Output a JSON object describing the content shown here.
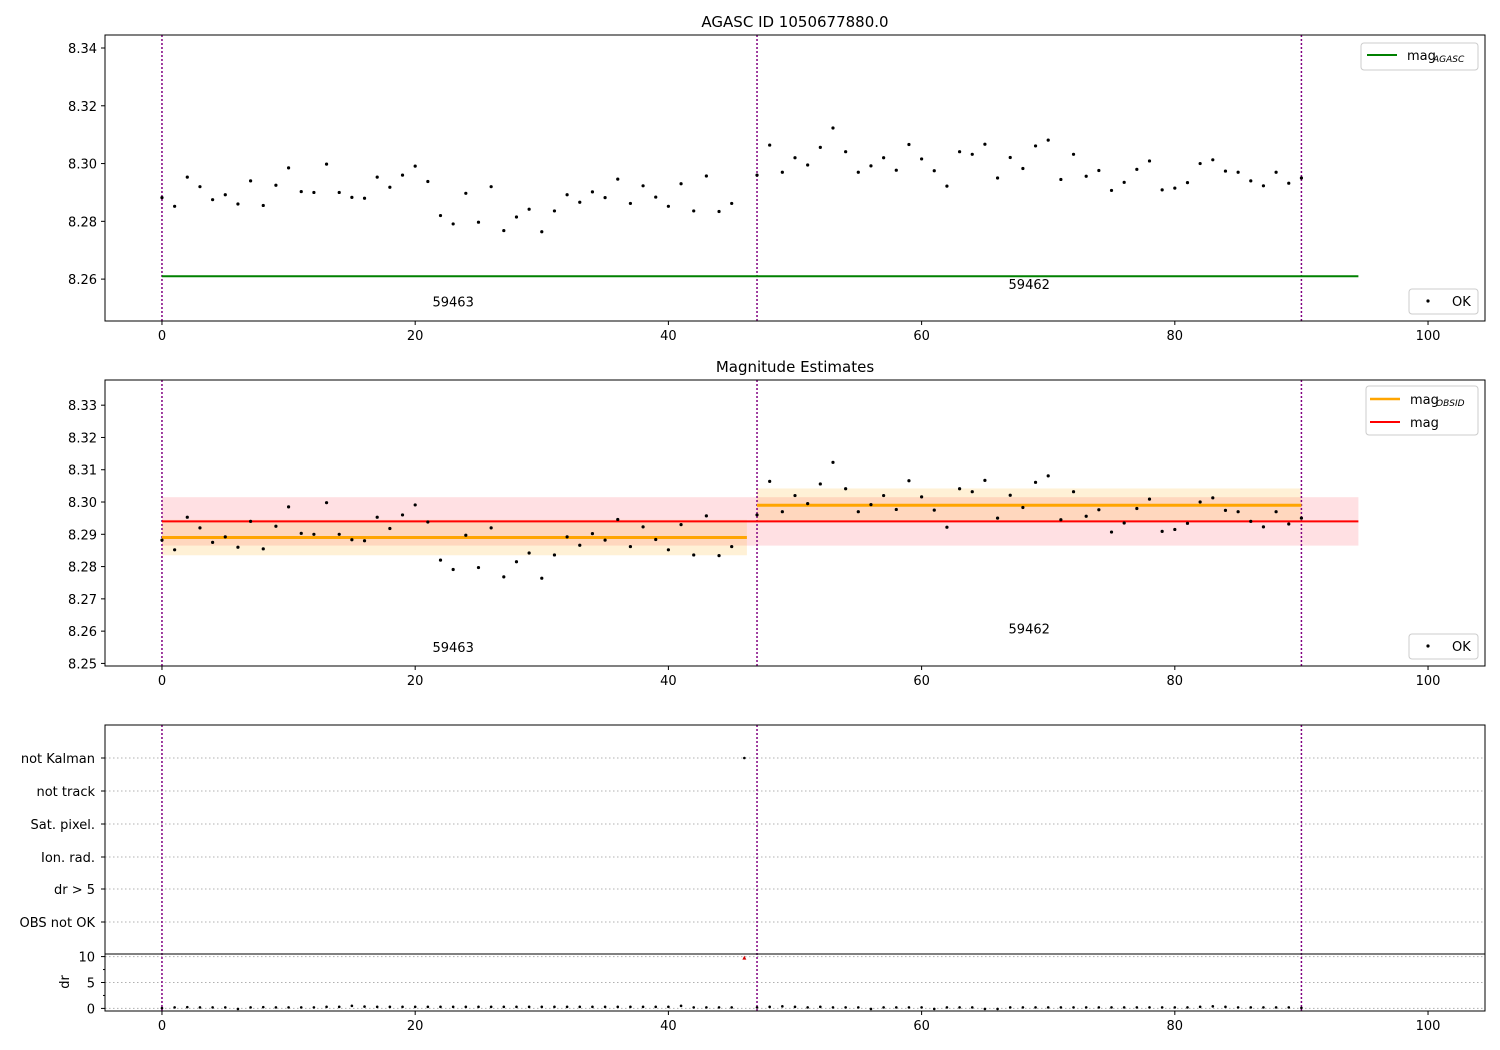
{
  "chart_data": [
    {
      "type": "scatter",
      "title": "AGASC ID 1050677880.0",
      "ylim": [
        8.2455,
        8.3445
      ],
      "yticks": [
        "8.26",
        "8.28",
        "8.30",
        "8.32",
        "8.34"
      ],
      "ytick_values": [
        8.26,
        8.28,
        8.3,
        8.32,
        8.34
      ],
      "reference_lines": [
        {
          "name": "AGASC",
          "value": 8.261,
          "color": "#008000",
          "x_range": [
            0,
            94.5
          ]
        }
      ],
      "legends": [
        {
          "position": "upper right",
          "entries": [
            {
              "label": "mag",
              "sub": "AGASC",
              "color": "#008000",
              "marker": "line"
            }
          ]
        },
        {
          "position": "lower right",
          "entries": [
            {
              "label": "OK",
              "color": "#000000",
              "marker": "dot"
            }
          ]
        }
      ],
      "annotations": [
        {
          "text": "59463",
          "x": 23,
          "y": 8.2505
        },
        {
          "text": "59462",
          "x": 68.5,
          "y": 8.2565
        }
      ]
    },
    {
      "type": "scatter",
      "title": "Magnitude Estimates",
      "ylim": [
        8.2492,
        8.3378
      ],
      "yticks": [
        "8.25",
        "8.26",
        "8.27",
        "8.28",
        "8.29",
        "8.30",
        "8.31",
        "8.32",
        "8.33"
      ],
      "ytick_values": [
        8.25,
        8.26,
        8.27,
        8.28,
        8.29,
        8.3,
        8.31,
        8.32,
        8.33
      ],
      "overall": {
        "value": 8.294,
        "band": [
          8.2865,
          8.3015
        ],
        "x_range": [
          0,
          94.5
        ],
        "color": "#ff0000",
        "band_color": "#ffe0e3"
      },
      "obsid_segments": [
        {
          "x_range": [
            0,
            46.2
          ],
          "value": 8.289,
          "band": [
            8.2835,
            8.2945
          ]
        },
        {
          "x_range": [
            47,
            90
          ],
          "value": 8.299,
          "band": [
            8.2942,
            8.3042
          ]
        }
      ],
      "legends": [
        {
          "position": "upper right",
          "entries": [
            {
              "label": "mag",
              "sub": "OBSID",
              "color": "#ffa500",
              "marker": "line"
            },
            {
              "label": "mag",
              "color": "#ff0000",
              "marker": "line"
            }
          ]
        },
        {
          "position": "lower right",
          "entries": [
            {
              "label": "OK",
              "color": "#000000",
              "marker": "dot"
            }
          ]
        }
      ],
      "annotations": [
        {
          "text": "59463",
          "x": 23,
          "y": 8.2535
        },
        {
          "text": "59462",
          "x": 68.5,
          "y": 8.2593
        }
      ]
    },
    {
      "type": "scatter",
      "title": "",
      "flag_labels": [
        "not Kalman",
        "not track",
        "Sat. pixel.",
        "Ion. rad.",
        "dr > 5",
        "OBS not OK"
      ],
      "flags": [
        {
          "label": "not Kalman",
          "x": [
            46
          ]
        }
      ],
      "dr_ylim": [
        -0.5,
        10.5
      ],
      "dr_yticks": [
        "0",
        "5",
        "10"
      ],
      "dr_ytick_values": [
        0,
        5,
        10
      ],
      "ylabel": "dr",
      "dr_outlier": {
        "x": 46,
        "y": 9.8
      }
    }
  ],
  "shared_x": {
    "xlim": [
      -4.5,
      104.5
    ],
    "xticks": [
      "0",
      "20",
      "40",
      "60",
      "80",
      "100"
    ],
    "xtick_values": [
      0,
      20,
      40,
      60,
      80,
      100
    ],
    "obs_boundaries": [
      0,
      47,
      90
    ],
    "boundary_color": "#800080"
  },
  "mag_points": [
    [
      0,
      8.2882
    ],
    [
      1,
      8.2852
    ],
    [
      2,
      8.2953
    ],
    [
      3,
      8.292
    ],
    [
      4,
      8.2875
    ],
    [
      5,
      8.2892
    ],
    [
      6,
      8.286
    ],
    [
      7,
      8.294
    ],
    [
      8,
      8.2855
    ],
    [
      9,
      8.2925
    ],
    [
      10,
      8.2985
    ],
    [
      11,
      8.2903
    ],
    [
      12,
      8.29
    ],
    [
      13,
      8.2998
    ],
    [
      14,
      8.29
    ],
    [
      15,
      8.2883
    ],
    [
      16,
      8.288
    ],
    [
      17,
      8.2953
    ],
    [
      18,
      8.2918
    ],
    [
      19,
      8.296
    ],
    [
      20,
      8.2991
    ],
    [
      21,
      8.2938
    ],
    [
      22,
      8.282
    ],
    [
      23,
      8.2791
    ],
    [
      24,
      8.2897
    ],
    [
      25,
      8.2797
    ],
    [
      26,
      8.292
    ],
    [
      27,
      8.2768
    ],
    [
      28,
      8.2815
    ],
    [
      29,
      8.2842
    ],
    [
      30,
      8.2764
    ],
    [
      31,
      8.2836
    ],
    [
      32,
      8.2892
    ],
    [
      33,
      8.2866
    ],
    [
      34,
      8.2902
    ],
    [
      35,
      8.2882
    ],
    [
      36,
      8.2946
    ],
    [
      37,
      8.2862
    ],
    [
      38,
      8.2923
    ],
    [
      39,
      8.2884
    ],
    [
      40,
      8.2852
    ],
    [
      41,
      8.293
    ],
    [
      42,
      8.2836
    ],
    [
      43,
      8.2957
    ],
    [
      44,
      8.2834
    ],
    [
      45,
      8.2862
    ],
    [
      47,
      8.296
    ],
    [
      48,
      8.3064
    ],
    [
      49,
      8.297
    ],
    [
      50,
      8.302
    ],
    [
      51,
      8.2995
    ],
    [
      52,
      8.3056
    ],
    [
      53,
      8.3123
    ],
    [
      54,
      8.3041
    ],
    [
      55,
      8.297
    ],
    [
      56,
      8.2992
    ],
    [
      57,
      8.302
    ],
    [
      58,
      8.2977
    ],
    [
      59,
      8.3066
    ],
    [
      60,
      8.3016
    ],
    [
      61,
      8.2975
    ],
    [
      62,
      8.2922
    ],
    [
      63,
      8.3041
    ],
    [
      64,
      8.3032
    ],
    [
      65,
      8.3067
    ],
    [
      66,
      8.295
    ],
    [
      67,
      8.3021
    ],
    [
      68,
      8.2983
    ],
    [
      69,
      8.3061
    ],
    [
      70,
      8.3081
    ],
    [
      71,
      8.2945
    ],
    [
      72,
      8.3032
    ],
    [
      73,
      8.2956
    ],
    [
      74,
      8.2976
    ],
    [
      75,
      8.2907
    ],
    [
      76,
      8.2935
    ],
    [
      77,
      8.298
    ],
    [
      78,
      8.3009
    ],
    [
      79,
      8.2909
    ],
    [
      80,
      8.2915
    ],
    [
      81,
      8.2934
    ],
    [
      82,
      8.3
    ],
    [
      83,
      8.3013
    ],
    [
      84,
      8.2974
    ],
    [
      85,
      8.297
    ],
    [
      86,
      8.294
    ],
    [
      87,
      8.2923
    ],
    [
      88,
      8.297
    ],
    [
      89,
      8.2932
    ],
    [
      90,
      8.295
    ]
  ],
  "dr_points": [
    [
      0,
      0.05
    ],
    [
      1,
      0.2
    ],
    [
      2,
      0.25
    ],
    [
      3,
      0.2
    ],
    [
      4,
      0.2
    ],
    [
      5,
      0.2
    ],
    [
      6,
      -0.1
    ],
    [
      7,
      0.2
    ],
    [
      8,
      0.25
    ],
    [
      9,
      0.2
    ],
    [
      10,
      0.2
    ],
    [
      11,
      0.2
    ],
    [
      12,
      0.2
    ],
    [
      13,
      0.3
    ],
    [
      14,
      0.3
    ],
    [
      15,
      0.5
    ],
    [
      16,
      0.35
    ],
    [
      17,
      0.3
    ],
    [
      18,
      0.3
    ],
    [
      19,
      0.3
    ],
    [
      20,
      0.3
    ],
    [
      21,
      0.3
    ],
    [
      22,
      0.3
    ],
    [
      23,
      0.3
    ],
    [
      24,
      0.3
    ],
    [
      25,
      0.3
    ],
    [
      26,
      0.3
    ],
    [
      27,
      0.3
    ],
    [
      28,
      0.3
    ],
    [
      29,
      0.3
    ],
    [
      30,
      0.3
    ],
    [
      31,
      0.3
    ],
    [
      32,
      0.3
    ],
    [
      33,
      0.3
    ],
    [
      34,
      0.3
    ],
    [
      35,
      0.3
    ],
    [
      36,
      0.3
    ],
    [
      37,
      0.3
    ],
    [
      38,
      0.3
    ],
    [
      39,
      0.3
    ],
    [
      40,
      0.3
    ],
    [
      41,
      0.5
    ],
    [
      42,
      0.2
    ],
    [
      43,
      0.2
    ],
    [
      44,
      0.2
    ],
    [
      45,
      0.2
    ],
    [
      47,
      0.2
    ],
    [
      48,
      0.3
    ],
    [
      49,
      0.4
    ],
    [
      50,
      0.3
    ],
    [
      51,
      0.2
    ],
    [
      52,
      0.3
    ],
    [
      53,
      0.2
    ],
    [
      54,
      0.2
    ],
    [
      55,
      0.2
    ],
    [
      56,
      -0.1
    ],
    [
      57,
      0.2
    ],
    [
      58,
      0.2
    ],
    [
      59,
      0.2
    ],
    [
      60,
      0.2
    ],
    [
      61,
      -0.1
    ],
    [
      62,
      0.2
    ],
    [
      63,
      0.2
    ],
    [
      64,
      0.2
    ],
    [
      65,
      -0.1
    ],
    [
      66,
      -0.1
    ],
    [
      67,
      0.2
    ],
    [
      68,
      0.2
    ],
    [
      69,
      0.2
    ],
    [
      70,
      0.2
    ],
    [
      71,
      0.2
    ],
    [
      72,
      0.2
    ],
    [
      73,
      0.2
    ],
    [
      74,
      0.2
    ],
    [
      75,
      0.2
    ],
    [
      76,
      0.2
    ],
    [
      77,
      0.2
    ],
    [
      78,
      0.2
    ],
    [
      79,
      0.2
    ],
    [
      80,
      0.2
    ],
    [
      81,
      0.2
    ],
    [
      82,
      0.3
    ],
    [
      83,
      0.4
    ],
    [
      84,
      0.3
    ],
    [
      85,
      0.2
    ],
    [
      86,
      0.2
    ],
    [
      87,
      0.2
    ],
    [
      88,
      0.2
    ],
    [
      89,
      0.2
    ],
    [
      90,
      0.1
    ]
  ]
}
